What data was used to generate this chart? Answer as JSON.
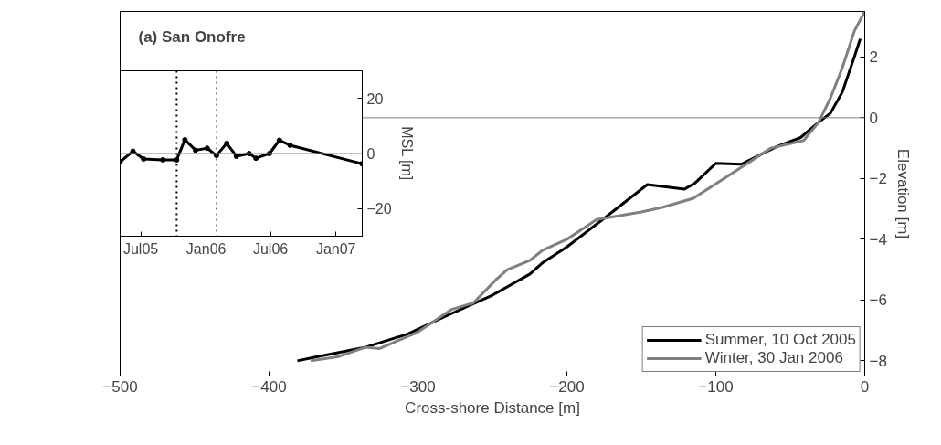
{
  "chart_data": [
    {
      "type": "line",
      "xlabel": "Cross-shore Distance [m]",
      "ylabel": "Elevation [m]",
      "annotations": [
        "(a) San Onofre"
      ],
      "xlim": [
        -500,
        0
      ],
      "ylim": [
        -8.5,
        3.5
      ],
      "xticks": [
        -500,
        -400,
        -300,
        -200,
        -100,
        0
      ],
      "yticks": [
        -8,
        -6,
        -4,
        -2,
        0,
        2
      ],
      "legend": "bottom right",
      "grid": false,
      "ref_lines": [
        {
          "axis": "y",
          "value": 0,
          "label": null,
          "color": "#808080"
        }
      ],
      "series": [
        {
          "name": "Summer, 10 Oct 2005",
          "color": "#000000",
          "x": [
            -381,
            -368,
            -335,
            -307,
            -280,
            -250,
            -225,
            -216,
            -200,
            -176,
            -146,
            -121,
            -114,
            -100,
            -83,
            -59,
            -43,
            -31,
            -23,
            -15,
            -7,
            -3
          ],
          "values": [
            -8.0,
            -7.87,
            -7.55,
            -7.12,
            -6.5,
            -5.84,
            -5.15,
            -4.76,
            -4.25,
            -3.35,
            -2.2,
            -2.35,
            -2.15,
            -1.5,
            -1.53,
            -0.95,
            -0.65,
            -0.15,
            0.15,
            0.85,
            2.0,
            2.6
          ]
        },
        {
          "name": "Winter, 30 Jan 2006",
          "color": "#808080",
          "x": [
            -372,
            -354,
            -335,
            -326,
            -300,
            -277,
            -263,
            -247,
            -240,
            -225,
            -216,
            -200,
            -180,
            -150,
            -136,
            -115,
            -96,
            -63,
            -41,
            -31,
            -23,
            -15,
            -7,
            0
          ],
          "values": [
            -8.0,
            -7.87,
            -7.55,
            -7.6,
            -7.05,
            -6.3,
            -6.1,
            -5.3,
            -5.0,
            -4.7,
            -4.35,
            -4.0,
            -3.35,
            -3.1,
            -2.95,
            -2.65,
            -2.05,
            -1.0,
            -0.75,
            -0.15,
            0.65,
            1.65,
            2.85,
            3.5
          ]
        }
      ]
    },
    {
      "type": "line",
      "ylabel": "MSL [m]",
      "marker": "circle",
      "grid": false,
      "xlim": [
        "2005-05-04",
        "2007-03-16"
      ],
      "ylim": [
        -30,
        30
      ],
      "xticks": [
        {
          "value": "2005-07-01",
          "label": "Jul05"
        },
        {
          "value": "2006-01-01",
          "label": "Jan06"
        },
        {
          "value": "2006-07-01",
          "label": "Jul06"
        },
        {
          "value": "2007-01-01",
          "label": "Jan07"
        }
      ],
      "yticks": [
        -20,
        0,
        20
      ],
      "ref_lines": [
        {
          "axis": "y",
          "value": 0,
          "label": null,
          "color": "#808080"
        },
        {
          "axis": "x",
          "value": "2005-10-10",
          "label": null,
          "color": "#000000",
          "line_style": "dotted"
        },
        {
          "axis": "x",
          "value": "2006-01-30",
          "label": null,
          "color": "#808080",
          "line_style": "dotted"
        }
      ],
      "series": [
        {
          "color": "#000000",
          "x": [
            "2005-05-04",
            "2005-06-09",
            "2005-07-09",
            "2005-09-01",
            "2005-10-10",
            "2005-11-02",
            "2005-12-02",
            "2006-01-04",
            "2006-01-30",
            "2006-02-28",
            "2006-03-27",
            "2006-05-02",
            "2006-05-21",
            "2006-06-28",
            "2006-07-26",
            "2006-08-25",
            "2007-03-15"
          ],
          "values": [
            -3,
            0.8,
            -2,
            -2.3,
            -2.3,
            5,
            1.2,
            1.9,
            -0.7,
            3.7,
            -1,
            0,
            -1.7,
            0,
            4.8,
            3,
            -3.7
          ]
        }
      ]
    }
  ]
}
